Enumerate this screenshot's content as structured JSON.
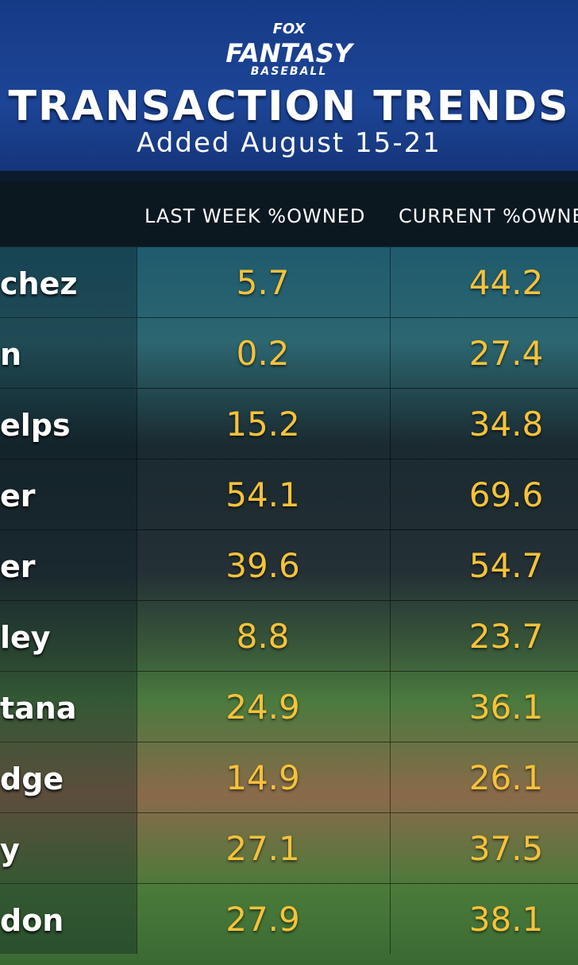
{
  "header": {
    "logo": {
      "brand": "FOX",
      "product": "FANTASY",
      "sport": "BASEBALL"
    },
    "title": "TRANSACTION TRENDS",
    "subtitle": "Added August 15-21"
  },
  "table": {
    "columns": [
      "LAST WEEK %OWNED",
      "CURRENT %OWNE"
    ],
    "rows": [
      [
        "chez",
        "5.7",
        "44.2"
      ],
      [
        "n",
        "0.2",
        "27.4"
      ],
      [
        "elps",
        "15.2",
        "34.8"
      ],
      [
        "er",
        "54.1",
        "69.6"
      ],
      [
        "er",
        "39.6",
        "54.7"
      ],
      [
        "ley",
        "8.8",
        "23.7"
      ],
      [
        "tana",
        "24.9",
        "36.1"
      ],
      [
        "dge",
        "14.9",
        "26.1"
      ],
      [
        "y",
        "27.1",
        "37.5"
      ],
      [
        "don",
        "27.9",
        "38.1"
      ]
    ]
  }
}
